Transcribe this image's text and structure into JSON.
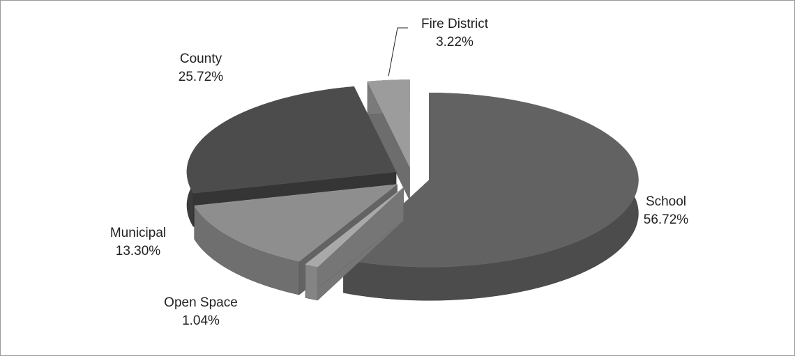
{
  "chart_data": {
    "type": "pie",
    "categories": [
      "School",
      "Open Space",
      "Municipal",
      "County",
      "Fire District"
    ],
    "values": [
      56.72,
      1.04,
      13.3,
      25.72,
      3.22
    ],
    "value_labels": [
      "56.72%",
      "1.04%",
      "13.30%",
      "25.72%",
      "3.22%"
    ],
    "colors": [
      "#626262",
      "#a9a9a9",
      "#8e8e8e",
      "#4c4c4c",
      "#9c9c9c"
    ]
  }
}
